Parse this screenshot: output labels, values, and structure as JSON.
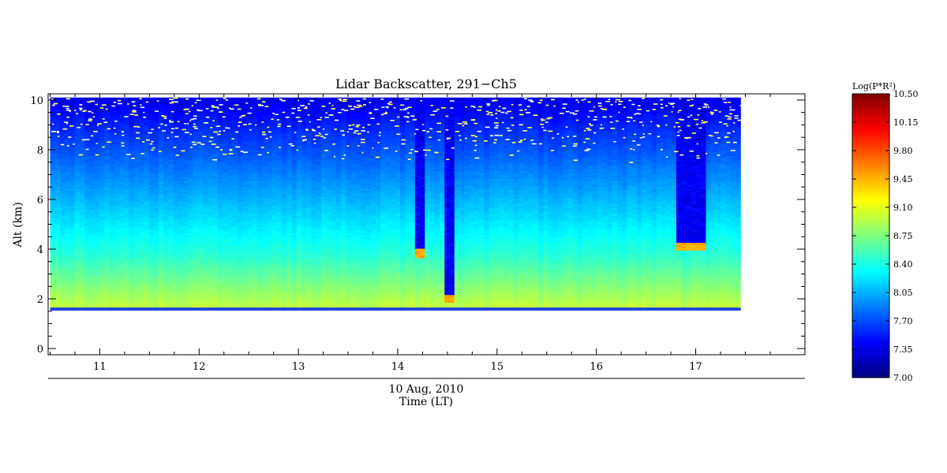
{
  "chart_data": {
    "type": "heatmap",
    "title": "Lidar Backscatter, 291−Ch5",
    "xlabel_date": "10 Aug, 2010",
    "xlabel": "Time (LT)",
    "ylabel": "Alt (km)",
    "xlim": [
      10.48,
      18.1
    ],
    "ylim": [
      -0.25,
      10.25
    ],
    "x_ticks": [
      11,
      12,
      13,
      14,
      15,
      16,
      17
    ],
    "y_ticks": [
      0,
      2,
      4,
      6,
      8,
      10
    ],
    "data_extent": {
      "x": [
        10.5,
        17.45
      ],
      "y": [
        1.55,
        10.1
      ]
    },
    "grid": false,
    "colorbar": {
      "label": "Log(P*R²)",
      "range": [
        7.0,
        10.5
      ],
      "ticks": [
        "7.00",
        "7.35",
        "7.70",
        "8.05",
        "8.40",
        "8.75",
        "9.10",
        "9.45",
        "9.80",
        "10.15",
        "10.50"
      ],
      "colormap": "jet"
    },
    "features": [
      {
        "type": "ground",
        "altitude_km": 1.6
      },
      {
        "type": "boundary_layer",
        "top_km": 3.8,
        "value_range": [
          8.6,
          9.1
        ]
      },
      {
        "type": "cloud",
        "x": [
          14.15,
          14.25
        ],
        "base_km": 3.8
      },
      {
        "type": "cloud",
        "x": [
          14.45,
          14.55
        ],
        "base_km": 2.0
      },
      {
        "type": "cloud",
        "x": [
          16.8,
          17.1
        ],
        "base_km": 4.1
      }
    ]
  }
}
